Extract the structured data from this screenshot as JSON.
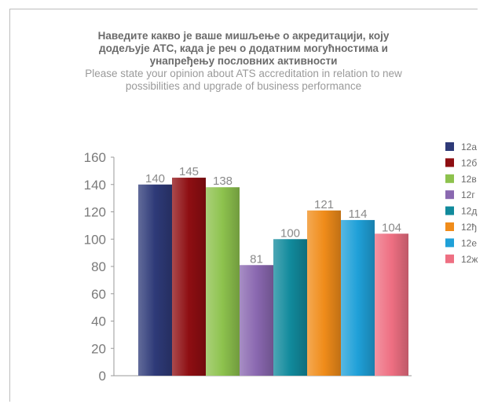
{
  "chart_data": {
    "type": "bar",
    "title": "Наведите какво је ваше мишљење о акредитацији, коју\nдодељује АТС, када је реч о додатним могућностима и\nунапређењу пословних активности",
    "subtitle": "Please state your opinion about ATS accreditation in relation to new\npossibilities and upgrade of business performance",
    "categories": [
      "12а",
      "12б",
      "12в",
      "12г",
      "12д",
      "12ђ",
      "12е",
      "12ж"
    ],
    "values": [
      140,
      145,
      138,
      81,
      100,
      121,
      114,
      104
    ],
    "ylim": [
      0,
      160
    ],
    "yticks": [
      "0",
      "20",
      "40",
      "60",
      "80",
      "100",
      "120",
      "140",
      "160"
    ],
    "legend_position": "right",
    "grid": false,
    "colors": [
      "#2e3a78",
      "#8e0e12",
      "#8dc24d",
      "#8a68b0",
      "#118a9c",
      "#f08c1a",
      "#1fa0d8",
      "#ee6f82"
    ]
  }
}
